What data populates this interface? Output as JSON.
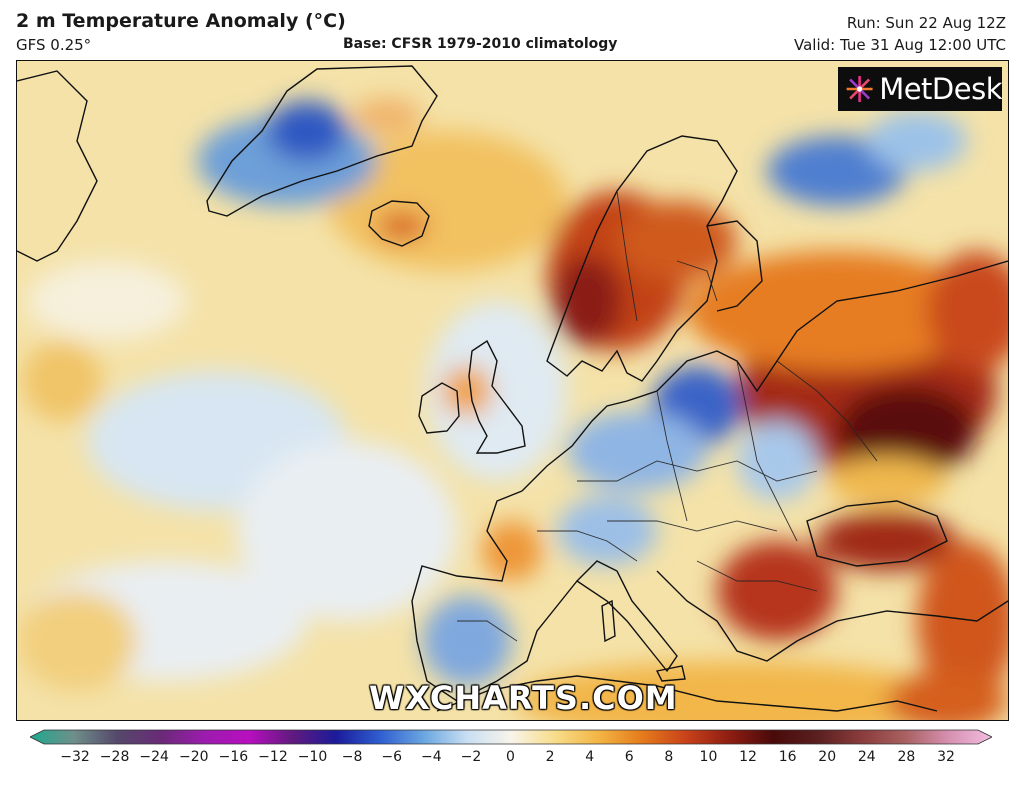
{
  "header": {
    "title": "2 m Temperature Anomaly (°C)",
    "model": "GFS 0.25°",
    "base": "Base: CFSR 1979-2010 climatology",
    "run": "Run: Sun 22 Aug 12Z",
    "valid": "Valid: Tue 31 Aug 12:00 UTC"
  },
  "logo": {
    "text": "MetDesk",
    "icon": "starburst-icon"
  },
  "watermark": "WXCHARTS.COM",
  "colorbar": {
    "ticks": [
      "−32",
      "−28",
      "−24",
      "−20",
      "−16",
      "−12",
      "−10",
      "−8",
      "−6",
      "−4",
      "−2",
      "0",
      "2",
      "4",
      "6",
      "8",
      "10",
      "12",
      "16",
      "20",
      "24",
      "28",
      "32"
    ],
    "colors": [
      "#1ea98f",
      "#6f8f8a",
      "#55486b",
      "#6a2a78",
      "#9c1cae",
      "#b80fbf",
      "#611a7f",
      "#1b1b9a",
      "#2f5ed0",
      "#6aa6e0",
      "#c9dff2",
      "#f8f4ea",
      "#f8dd8a",
      "#f3b545",
      "#e57b1c",
      "#c8421a",
      "#8e1d12",
      "#4a0a0a",
      "#5a1f1f",
      "#8a3b3b",
      "#a86060",
      "#d690b0",
      "#f2bde0"
    ]
  }
}
